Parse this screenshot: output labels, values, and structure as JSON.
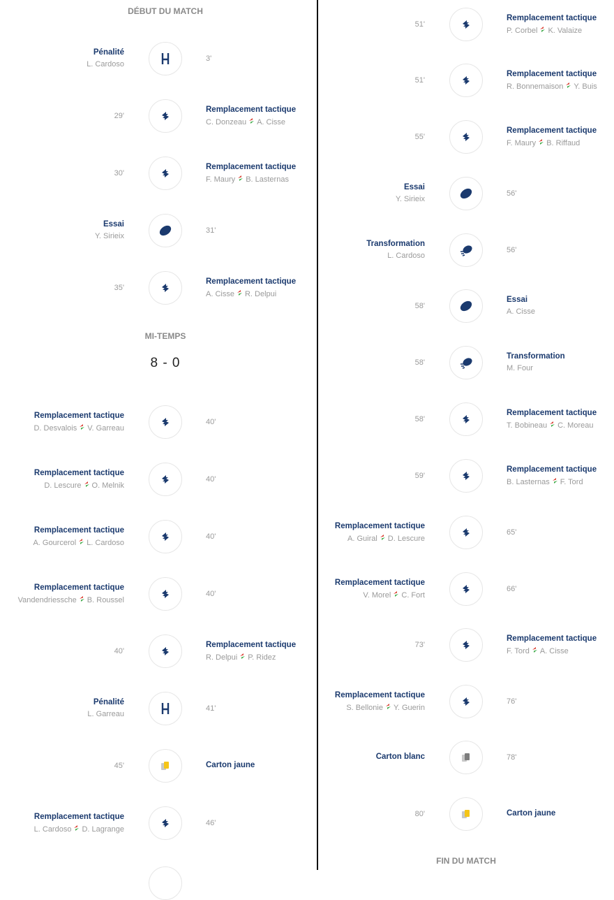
{
  "columns": [
    {
      "header": "DÉBUT DU MATCH",
      "items": [
        {
          "event": "Pénalité",
          "players": [
            "L. Cardoso"
          ],
          "minute": "3'"
        },
        {
          "event": "Remplacement tactique",
          "players": [
            "C. Donzeau",
            "A. Cisse"
          ],
          "minute": "29'"
        },
        {
          "event": "Remplacement tactique",
          "players": [
            "F. Maury",
            "B. Lasternas"
          ],
          "minute": "30'"
        },
        {
          "event": "Essai",
          "players": [
            "Y. Sirieix"
          ],
          "minute": "31'"
        },
        {
          "event": "Remplacement tactique",
          "players": [
            "A. Cisse",
            "R. Delpui"
          ],
          "minute": "35'"
        },
        {
          "event": "Remplacement tactique",
          "players": [
            "D. Desvalois",
            "V. Garreau"
          ],
          "minute": "40'"
        },
        {
          "event": "Remplacement tactique",
          "players": [
            "D. Lescure",
            "O. Melnik"
          ],
          "minute": "40'"
        },
        {
          "event": "Remplacement tactique",
          "players": [
            "A. Gourcerol",
            "L. Cardoso"
          ],
          "minute": "40'"
        },
        {
          "event": "Remplacement tactique",
          "players": [
            "Vandendriessche",
            "B. Roussel"
          ],
          "minute": "40'"
        },
        {
          "event": "Remplacement tactique",
          "players": [
            "R. Delpui",
            "P. Ridez"
          ],
          "minute": "40'"
        },
        {
          "event": "Pénalité",
          "players": [
            "L. Garreau"
          ],
          "minute": "41'"
        },
        {
          "event": "Carton jaune",
          "players": [],
          "minute": "45'"
        },
        {
          "event": "Remplacement tactique",
          "players": [
            "L. Cardoso",
            "D. Lagrange"
          ],
          "minute": "46'"
        }
      ],
      "halftime": {
        "label": "MI-TEMPS",
        "score": "8 - 0"
      }
    },
    {
      "items": [
        {
          "event": "Remplacement tactique",
          "players": [
            "P. Corbel",
            "K. Valaize"
          ],
          "minute": "51'"
        },
        {
          "event": "Remplacement tactique",
          "players": [
            "R. Bonnemaison",
            "Y. Buis"
          ],
          "minute": "51'"
        },
        {
          "event": "Remplacement tactique",
          "players": [
            "F. Maury",
            "B. Riffaud"
          ],
          "minute": "55'"
        },
        {
          "event": "Essai",
          "players": [
            "Y. Sirieix"
          ],
          "minute": "56'"
        },
        {
          "event": "Transformation",
          "players": [
            "L. Cardoso"
          ],
          "minute": "56'"
        },
        {
          "event": "Essai",
          "players": [
            "A. Cisse"
          ],
          "minute": "58'"
        },
        {
          "event": "Transformation",
          "players": [
            "M. Four"
          ],
          "minute": "58'"
        },
        {
          "event": "Remplacement tactique",
          "players": [
            "T. Bobineau",
            "C. Moreau"
          ],
          "minute": "58'"
        },
        {
          "event": "Remplacement tactique",
          "players": [
            "B. Lasternas",
            "F. Tord"
          ],
          "minute": "59'"
        },
        {
          "event": "Remplacement tactique",
          "players": [
            "A. Guiral",
            "D. Lescure"
          ],
          "minute": "65'"
        },
        {
          "event": "Remplacement tactique",
          "players": [
            "V. Morel",
            "C. Fort"
          ],
          "minute": "66'"
        },
        {
          "event": "Remplacement tactique",
          "players": [
            "F. Tord",
            "A. Cisse"
          ],
          "minute": "73'"
        },
        {
          "event": "Remplacement tactique",
          "players": [
            "S. Bellonie",
            "Y. Guerin"
          ],
          "minute": "76'"
        },
        {
          "event": "Carton blanc",
          "players": [],
          "minute": "78'"
        },
        {
          "event": "Carton jaune",
          "players": [],
          "minute": "80'"
        }
      ],
      "footer": "FIN DU MATCH"
    }
  ]
}
